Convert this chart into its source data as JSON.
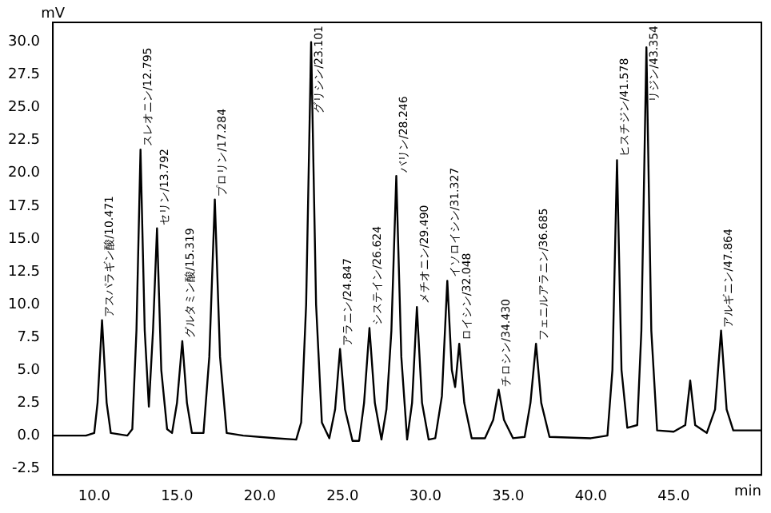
{
  "chart_data": {
    "type": "line",
    "xlabel": "min",
    "ylabel": "mV",
    "legend": false,
    "grid": false,
    "xlim": [
      7.5,
      50.3
    ],
    "ylim": [
      -3,
      31.5
    ],
    "xticks": [
      {
        "value": 10,
        "label": "10.0"
      },
      {
        "value": 15,
        "label": "15.0"
      },
      {
        "value": 20,
        "label": "20.0"
      },
      {
        "value": 25,
        "label": "25.0"
      },
      {
        "value": 30,
        "label": "30.0"
      },
      {
        "value": 35,
        "label": "35.0"
      },
      {
        "value": 40,
        "label": "40.0"
      },
      {
        "value": 45,
        "label": "45.0"
      }
    ],
    "yticks": [
      {
        "value": -2.5,
        "label": "-2.5"
      },
      {
        "value": 0,
        "label": "0.0"
      },
      {
        "value": 2.5,
        "label": "2.5"
      },
      {
        "value": 5,
        "label": "5.0"
      },
      {
        "value": 7.5,
        "label": "7.5"
      },
      {
        "value": 10,
        "label": "10.0"
      },
      {
        "value": 12.5,
        "label": "12.5"
      },
      {
        "value": 15,
        "label": "15.0"
      },
      {
        "value": 17.5,
        "label": "17.5"
      },
      {
        "value": 20,
        "label": "20.0"
      },
      {
        "value": 22.5,
        "label": "22.5"
      },
      {
        "value": 25,
        "label": "25.0"
      },
      {
        "value": 27.5,
        "label": "27.5"
      },
      {
        "value": 30,
        "label": "30.0"
      }
    ],
    "series": [
      {
        "color": "#000000",
        "x": [
          7.5,
          9.5,
          10.0,
          10.2,
          10.471,
          10.75,
          11.0,
          12.0,
          12.3,
          12.55,
          12.795,
          13.05,
          13.3,
          13.55,
          13.792,
          14.05,
          14.4,
          14.7,
          15.0,
          15.319,
          15.6,
          15.9,
          16.6,
          16.95,
          17.284,
          17.6,
          18.0,
          19.0,
          21.0,
          22.2,
          22.5,
          22.8,
          23.101,
          23.4,
          23.75,
          24.2,
          24.55,
          24.847,
          25.15,
          25.6,
          26.0,
          26.3,
          26.624,
          26.95,
          27.35,
          27.65,
          27.95,
          28.246,
          28.55,
          28.9,
          29.2,
          29.49,
          29.8,
          30.2,
          30.6,
          31.0,
          31.327,
          31.6,
          31.8,
          32.048,
          32.35,
          32.8,
          33.6,
          34.1,
          34.43,
          34.75,
          35.3,
          36.0,
          36.35,
          36.685,
          37.0,
          37.5,
          40.0,
          41.0,
          41.3,
          41.578,
          41.85,
          42.2,
          42.8,
          43.05,
          43.354,
          43.65,
          44.0,
          45.0,
          45.7,
          46.0,
          46.3,
          47.0,
          47.5,
          47.864,
          48.2,
          48.6,
          50.3
        ],
        "values": [
          0.0,
          0.0,
          0.2,
          2.5,
          8.8,
          2.5,
          0.2,
          0.0,
          0.5,
          8,
          21.8,
          8,
          2.2,
          8,
          15.8,
          5,
          0.5,
          0.2,
          2.5,
          7.2,
          2.5,
          0.2,
          0.2,
          6,
          18.0,
          6,
          0.2,
          0.0,
          -0.2,
          -0.3,
          1,
          10,
          30.0,
          10,
          1,
          -0.2,
          2,
          6.6,
          2,
          -0.4,
          -0.4,
          2.5,
          8.2,
          2.5,
          -0.3,
          2,
          8,
          19.8,
          6,
          -0.3,
          2.5,
          9.8,
          2.5,
          -0.3,
          -0.2,
          3,
          11.8,
          5,
          3.7,
          7.0,
          2.5,
          -0.2,
          -0.2,
          1.2,
          3.5,
          1.2,
          -0.2,
          -0.1,
          2.5,
          7.0,
          2.5,
          -0.1,
          -0.2,
          0.0,
          5,
          21.0,
          5,
          0.6,
          0.8,
          8,
          29.6,
          8,
          0.4,
          0.3,
          0.8,
          4.2,
          0.8,
          0.2,
          2,
          8.0,
          2,
          0.4,
          0.4
        ]
      }
    ],
    "annotations": [
      {
        "text": "アスパラギン酸/10.471",
        "x": 10.471,
        "y": 8.8
      },
      {
        "text": "スレオニン/12.795",
        "x": 12.795,
        "y": 21.8
      },
      {
        "text": "セリン/13.792",
        "x": 13.792,
        "y": 15.8
      },
      {
        "text": "グルタミン酸/15.319",
        "x": 15.319,
        "y": 7.2
      },
      {
        "text": "プロリン/17.284",
        "x": 17.284,
        "y": 18.0
      },
      {
        "text": "グリシン/23.101",
        "x": 23.101,
        "y": 30.0
      },
      {
        "text": "アラニン/24.847",
        "x": 24.847,
        "y": 6.6
      },
      {
        "text": "システイン/26.624",
        "x": 26.624,
        "y": 8.2
      },
      {
        "text": "バリン/28.246",
        "x": 28.246,
        "y": 19.8
      },
      {
        "text": "メチオニン/29.490",
        "x": 29.49,
        "y": 9.8
      },
      {
        "text": "イソロイシン/31.327",
        "x": 31.327,
        "y": 11.8
      },
      {
        "text": "ロイシン/32.048",
        "x": 32.048,
        "y": 7.0
      },
      {
        "text": "チロシン/34.430",
        "x": 34.43,
        "y": 3.5
      },
      {
        "text": "フェニルアラニン/36.685",
        "x": 36.685,
        "y": 7.0
      },
      {
        "text": "ヒスチジン/41.578",
        "x": 41.578,
        "y": 21.0
      },
      {
        "text": "リジン/43.354",
        "x": 43.354,
        "y": 29.6
      },
      {
        "text": "アルギニン/47.864",
        "x": 47.864,
        "y": 8.0
      }
    ]
  }
}
